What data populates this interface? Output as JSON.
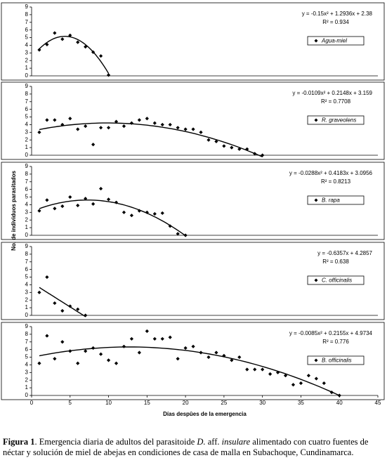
{
  "chart_data": [
    {
      "type": "scatter",
      "name": "Agua-miel",
      "color": "#000000",
      "x": [
        1,
        2,
        3,
        4,
        5,
        6,
        7,
        8,
        9,
        10
      ],
      "values": [
        3.4,
        4.1,
        5.6,
        4.8,
        5.3,
        4.4,
        3.8,
        3.1,
        2.6,
        0.1
      ],
      "xlim": [
        0,
        45
      ],
      "ylim": [
        0,
        9
      ],
      "yticks": [
        0,
        1,
        2,
        3,
        4,
        5,
        6,
        7,
        8,
        9
      ],
      "trend": {
        "coefficients": [
          -0.15,
          1.2936,
          2.38
        ],
        "xlim": [
          1,
          10
        ],
        "equation": "y = -0.15x² + 1.2936x + 2.38",
        "r2": "R² = 0.934"
      }
    },
    {
      "type": "scatter",
      "name": "R. graveolens",
      "color": "#000000",
      "x": [
        1,
        2,
        3,
        4,
        5,
        6,
        7,
        8,
        9,
        10,
        11,
        12,
        13,
        14,
        15,
        16,
        17,
        18,
        19,
        20,
        21,
        22,
        23,
        24,
        25,
        26,
        27,
        28,
        29,
        30
      ],
      "values": [
        3.0,
        4.6,
        4.6,
        4.0,
        4.8,
        3.4,
        3.8,
        1.4,
        3.6,
        3.6,
        4.4,
        3.8,
        4.2,
        4.6,
        4.8,
        4.2,
        4.0,
        4.0,
        3.6,
        3.4,
        3.4,
        3.0,
        2.0,
        1.8,
        1.2,
        1.0,
        0.8,
        0.8,
        0.2,
        0.0
      ],
      "xlim": [
        0,
        45
      ],
      "ylim": [
        0,
        9
      ],
      "yticks": [
        0,
        1,
        2,
        3,
        4,
        5,
        6,
        7,
        8,
        9
      ],
      "trend": {
        "coefficients": [
          -0.0109,
          0.2148,
          3.159
        ],
        "xlim": [
          1,
          30
        ],
        "equation": "y = -0.0109x² + 0.2148x + 3.159",
        "r2": "R² = 0.7708"
      }
    },
    {
      "type": "scatter",
      "name": "B. rapa",
      "color": "#000000",
      "x": [
        1,
        2,
        3,
        4,
        5,
        6,
        7,
        8,
        9,
        10,
        11,
        12,
        13,
        14,
        15,
        16,
        17,
        18,
        19,
        20
      ],
      "values": [
        3.2,
        4.6,
        3.5,
        3.8,
        5.0,
        3.9,
        4.8,
        4.1,
        6.1,
        4.7,
        4.3,
        3.0,
        2.6,
        3.2,
        3.0,
        2.8,
        2.9,
        1.2,
        0.2,
        0.0
      ],
      "xlim": [
        0,
        45
      ],
      "ylim": [
        0,
        9
      ],
      "yticks": [
        0,
        1,
        2,
        3,
        4,
        5,
        6,
        7,
        8,
        9
      ],
      "ylabel": "No. de individuos parasitados",
      "trend": {
        "coefficients": [
          -0.0288,
          0.4183,
          3.0956
        ],
        "xlim": [
          1,
          20
        ],
        "equation": "y = -0.0288x² + 0.4183x + 3.0956",
        "r2": "R² = 0.8213"
      }
    },
    {
      "type": "scatter",
      "name": "C. officinalis",
      "color": "#000000",
      "x": [
        1,
        2,
        3,
        4,
        5,
        6,
        7
      ],
      "values": [
        3.0,
        5.0,
        1.6,
        0.6,
        1.2,
        0.8,
        0.0
      ],
      "xlim": [
        0,
        45
      ],
      "ylim": [
        0,
        9
      ],
      "yticks": [
        0,
        1,
        2,
        3,
        4,
        5,
        6,
        7,
        8,
        9
      ],
      "trend": {
        "coefficients": [
          -0.6357,
          4.2857
        ],
        "xlim": [
          1,
          7
        ],
        "equation": "y = -0.6357x + 4.2857",
        "r2": "R² = 0.638"
      }
    },
    {
      "type": "scatter",
      "name": "B. officinalis",
      "color": "#000000",
      "x": [
        1,
        2,
        3,
        4,
        5,
        6,
        7,
        8,
        9,
        10,
        11,
        12,
        13,
        14,
        15,
        16,
        17,
        18,
        19,
        20,
        21,
        22,
        23,
        24,
        25,
        26,
        27,
        28,
        29,
        30,
        31,
        32,
        33,
        34,
        35,
        36,
        37,
        38,
        39,
        40
      ],
      "values": [
        4.2,
        7.8,
        4.8,
        7.0,
        5.8,
        4.2,
        5.8,
        6.2,
        5.4,
        4.6,
        4.2,
        6.4,
        7.4,
        5.6,
        8.4,
        7.4,
        7.4,
        7.6,
        4.8,
        6.2,
        6.4,
        5.6,
        5.0,
        5.6,
        5.2,
        4.6,
        5.0,
        3.4,
        3.4,
        3.4,
        2.8,
        3.0,
        2.6,
        1.4,
        1.6,
        2.6,
        2.2,
        1.6,
        0.4,
        0.0
      ],
      "xlim": [
        0,
        45
      ],
      "xticks": [
        0,
        5,
        10,
        15,
        20,
        25,
        30,
        35,
        40,
        45
      ],
      "ylim": [
        0,
        9
      ],
      "yticks": [
        0,
        1,
        2,
        3,
        4,
        5,
        6,
        7,
        8,
        9
      ],
      "xlabel": "Días despûes de la emergencia",
      "trend": {
        "coefficients": [
          -0.0085,
          0.2155,
          4.9734
        ],
        "xlim": [
          1,
          40
        ],
        "equation": "y = -0.0085x² + 0.2155x + 4.9734",
        "r2": "R² = 0.776"
      }
    }
  ],
  "caption": [
    {
      "text": "Figura 1",
      "style": "bold"
    },
    {
      "text": ". Emergencia diaria de adultos del parasitoide ",
      "style": "normal"
    },
    {
      "text": "D.",
      "style": "italic"
    },
    {
      "text": " aff. ",
      "style": "normal"
    },
    {
      "text": "insulare",
      "style": "italic"
    },
    {
      "text": " alimentado con cuatro fuentes de néctar y solución de miel de abejas en condiciones de casa de malla en Subachoque, Cundinamarca.",
      "style": "normal"
    }
  ]
}
